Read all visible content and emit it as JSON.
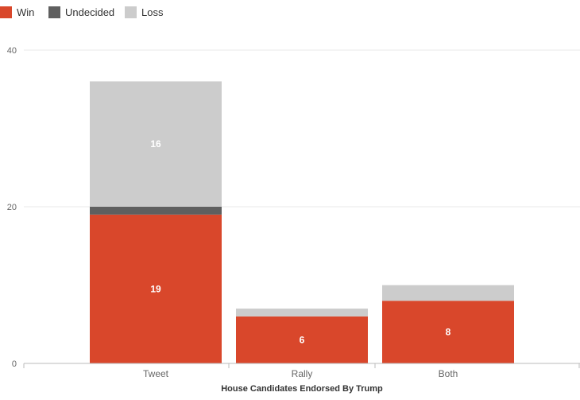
{
  "chart_data": {
    "type": "bar",
    "stacked": true,
    "categories": [
      "Tweet",
      "Rally",
      "Both"
    ],
    "series": [
      {
        "name": "Win",
        "values": [
          19,
          6,
          8
        ],
        "color": "#d9472b"
      },
      {
        "name": "Undecided",
        "values": [
          1,
          0,
          0
        ],
        "color": "#5f5f5f"
      },
      {
        "name": "Loss",
        "values": [
          16,
          1,
          2
        ],
        "color": "#cccccc"
      }
    ],
    "data_labels": [
      {
        "series": "Win",
        "category": "Tweet",
        "text": "19"
      },
      {
        "series": "Win",
        "category": "Rally",
        "text": "6"
      },
      {
        "series": "Win",
        "category": "Both",
        "text": "8"
      },
      {
        "series": "Loss",
        "category": "Tweet",
        "text": "16"
      }
    ],
    "title": "",
    "xlabel": "House Candidates Endorsed By Trump",
    "ylabel": "",
    "ylim": [
      0,
      40
    ],
    "yticks": [
      0,
      20,
      40
    ],
    "grid": true,
    "legend_position": "top-left"
  }
}
